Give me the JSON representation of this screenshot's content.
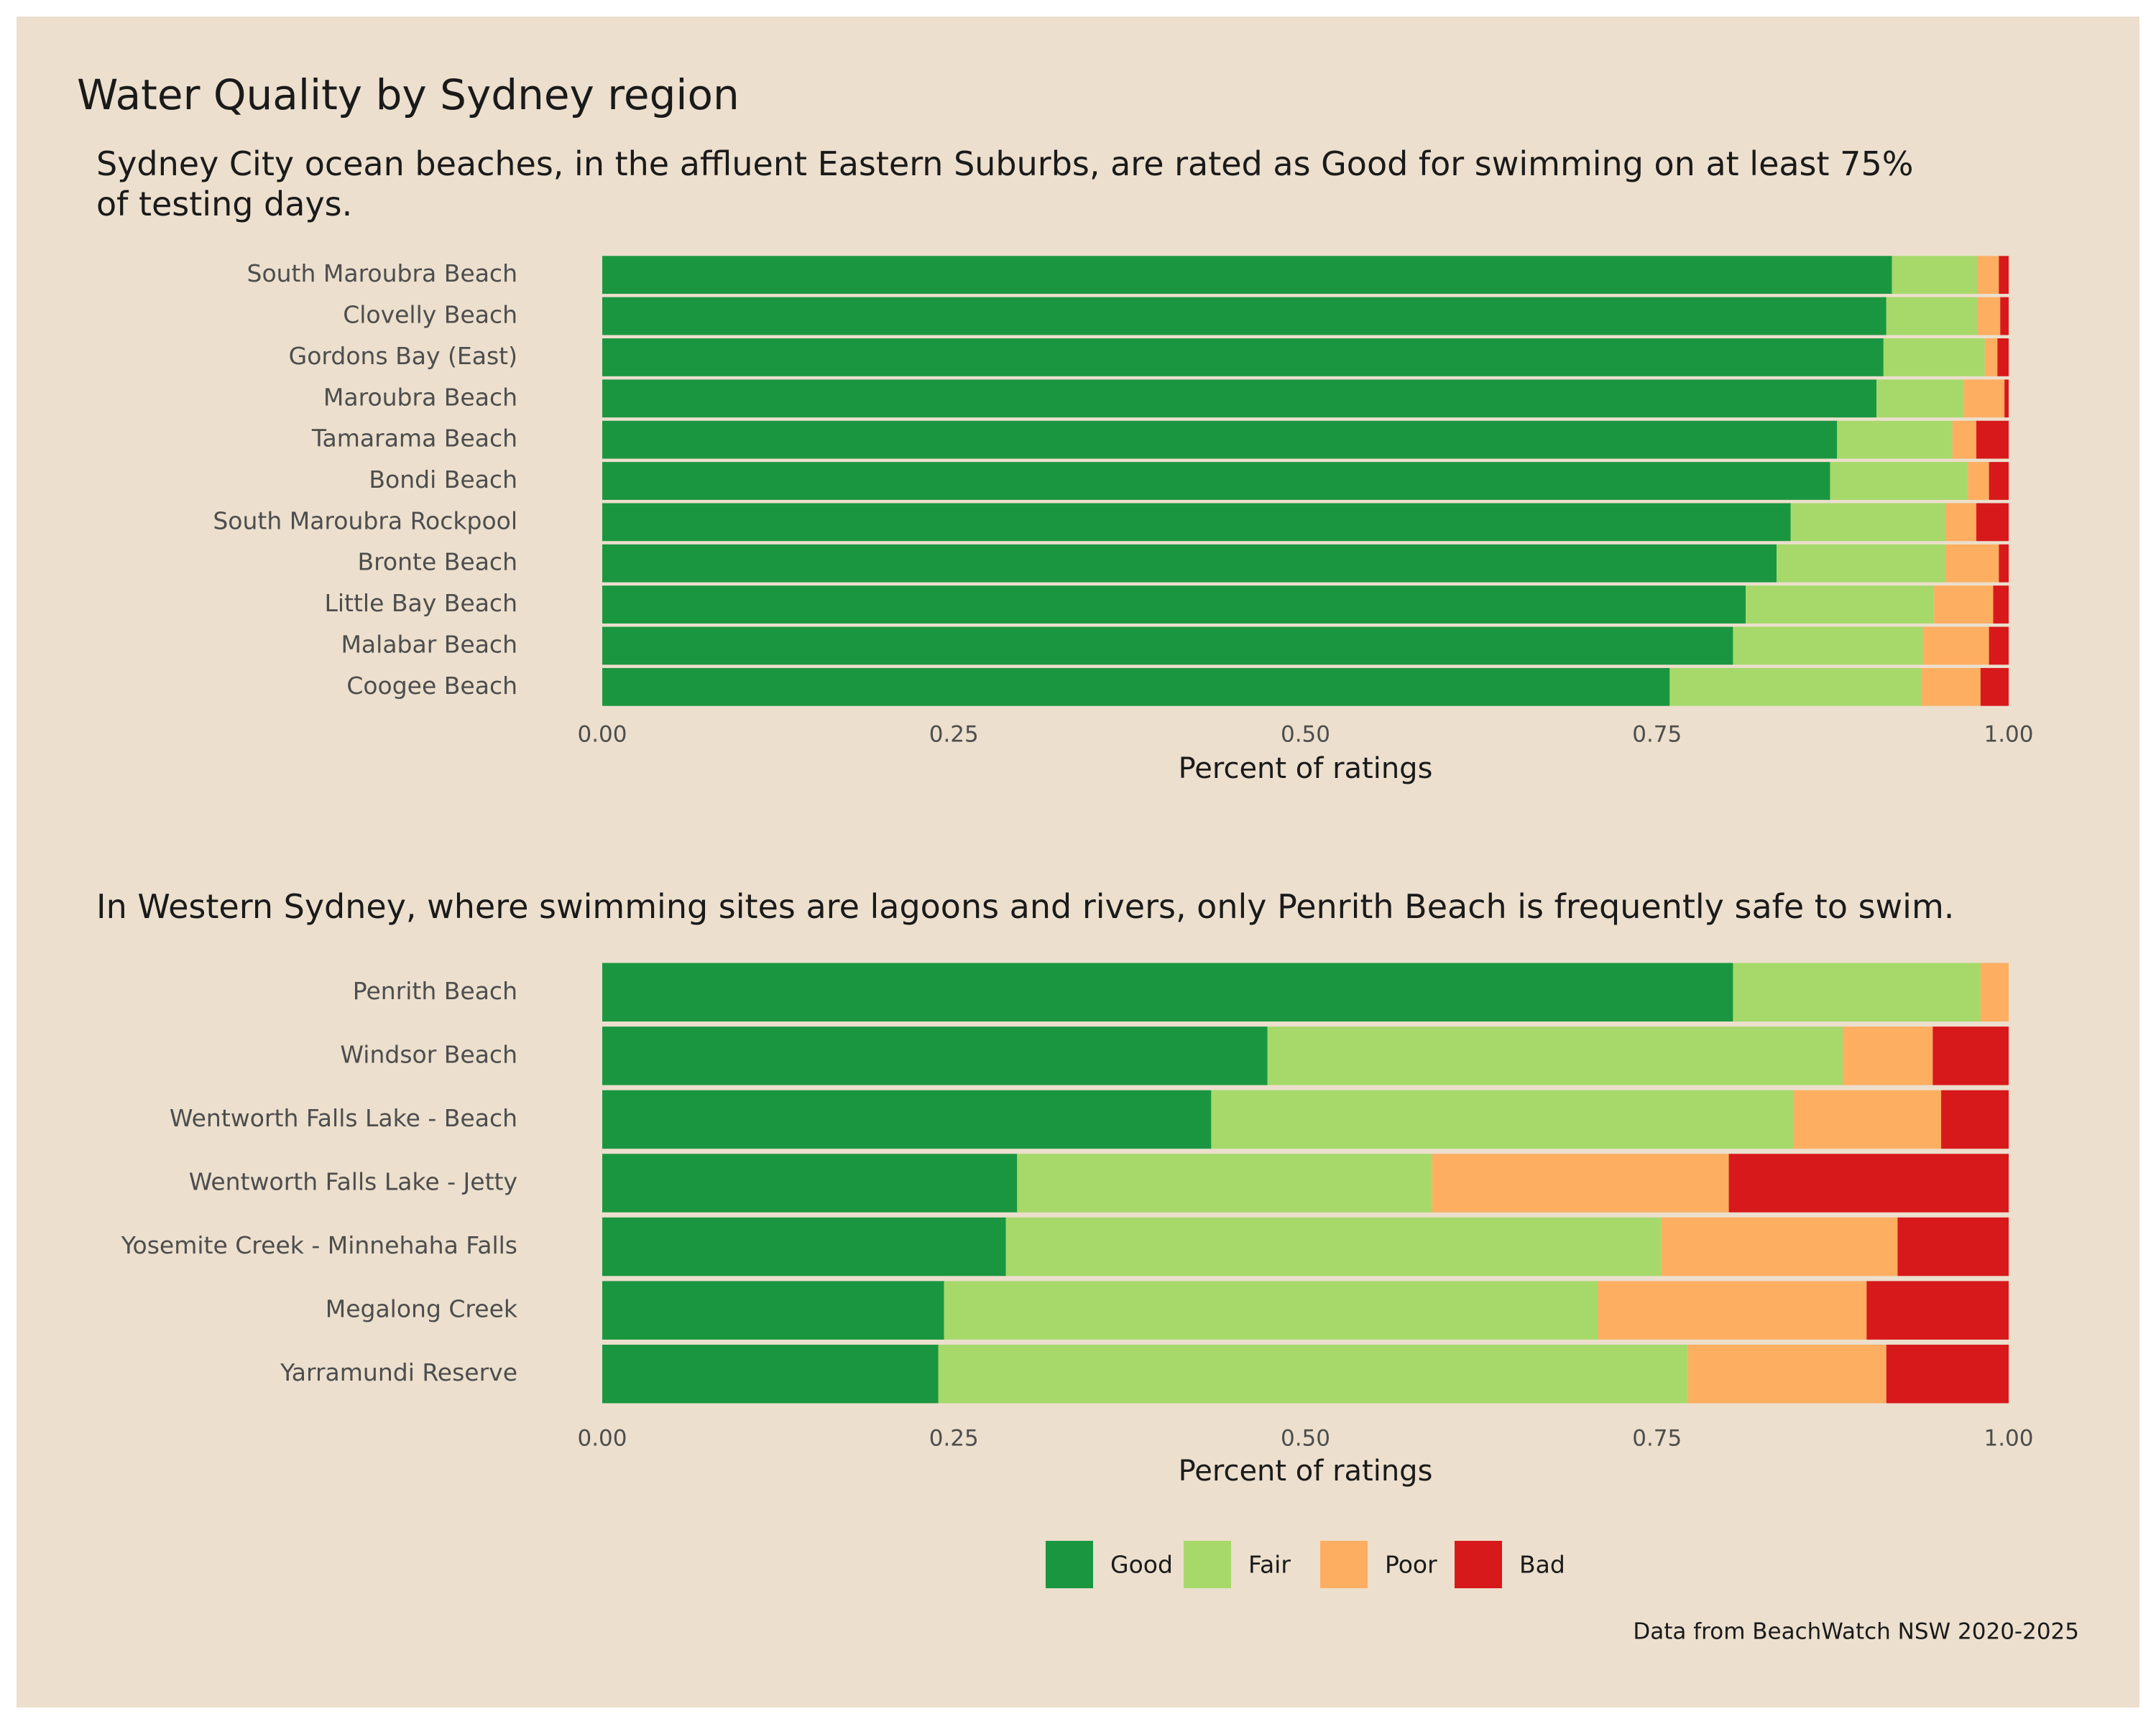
{
  "title": "Water Quality by Sydney region",
  "caption": "Data from BeachWatch NSW 2020-2025",
  "chart_data": [
    {
      "type": "stacked-bar-horizontal",
      "subtitle": "Sydney City ocean beaches, in the affluent Eastern Suburbs, are rated as Good for swimming on at least 75% of testing days.",
      "x_label": "Percent of ratings",
      "categories": [
        "South Maroubra Beach",
        "Clovelly Beach",
        "Gordons Bay (East)",
        "Maroubra Beach",
        "Tamarama Beach",
        "Bondi Beach",
        "South Maroubra Rockpool",
        "Bronte Beach",
        "Little Bay Beach",
        "Malabar Beach",
        "Coogee Beach"
      ],
      "series": [
        {
          "name": "Good",
          "color": "#1b9640",
          "values": [
            0.917,
            0.913,
            0.911,
            0.906,
            0.878,
            0.873,
            0.845,
            0.835,
            0.813,
            0.804,
            0.759
          ]
        },
        {
          "name": "Fair",
          "color": "#a6d96a",
          "values": [
            0.061,
            0.065,
            0.072,
            0.062,
            0.082,
            0.098,
            0.11,
            0.12,
            0.134,
            0.135,
            0.179
          ]
        },
        {
          "name": "Poor",
          "color": "#fdae61",
          "values": [
            0.015,
            0.016,
            0.009,
            0.029,
            0.017,
            0.015,
            0.022,
            0.038,
            0.042,
            0.047,
            0.042
          ]
        },
        {
          "name": "Bad",
          "color": "#d7191c",
          "values": [
            0.007,
            0.006,
            0.008,
            0.003,
            0.023,
            0.014,
            0.023,
            0.007,
            0.011,
            0.014,
            0.02
          ]
        }
      ],
      "xlim": [
        0,
        1
      ],
      "xticks": [
        {
          "value": 0,
          "label": "0.00"
        },
        {
          "value": 0.25,
          "label": "0.25"
        },
        {
          "value": 0.5,
          "label": "0.50"
        },
        {
          "value": 0.75,
          "label": "0.75"
        },
        {
          "value": 1,
          "label": "1.00"
        }
      ]
    },
    {
      "type": "stacked-bar-horizontal",
      "subtitle": "In Western Sydney, where swimming sites are lagoons and rivers, only Penrith Beach is frequently safe to swim.",
      "x_label": "Percent of ratings",
      "categories": [
        "Penrith Beach",
        "Windsor Beach",
        "Wentworth Falls Lake - Beach",
        "Wentworth Falls Lake - Jetty",
        "Yosemite Creek - Minnehaha Falls",
        "Megalong Creek",
        "Yarramundi Reserve"
      ],
      "series": [
        {
          "name": "Good",
          "color": "#1b9640",
          "values": [
            0.804,
            0.473,
            0.433,
            0.295,
            0.287,
            0.243,
            0.239
          ]
        },
        {
          "name": "Fair",
          "color": "#a6d96a",
          "values": [
            0.176,
            0.409,
            0.414,
            0.295,
            0.466,
            0.465,
            0.533
          ]
        },
        {
          "name": "Poor",
          "color": "#fdae61",
          "values": [
            0.02,
            0.064,
            0.105,
            0.211,
            0.168,
            0.191,
            0.141
          ]
        },
        {
          "name": "Bad",
          "color": "#d7191c",
          "values": [
            0,
            0.054,
            0.048,
            0.199,
            0.079,
            0.101,
            0.087
          ]
        }
      ],
      "xlim": [
        0,
        1
      ],
      "xticks": [
        {
          "value": 0,
          "label": "0.00"
        },
        {
          "value": 0.25,
          "label": "0.25"
        },
        {
          "value": 0.5,
          "label": "0.50"
        },
        {
          "value": 0.75,
          "label": "0.75"
        },
        {
          "value": 1,
          "label": "1.00"
        }
      ]
    }
  ]
}
